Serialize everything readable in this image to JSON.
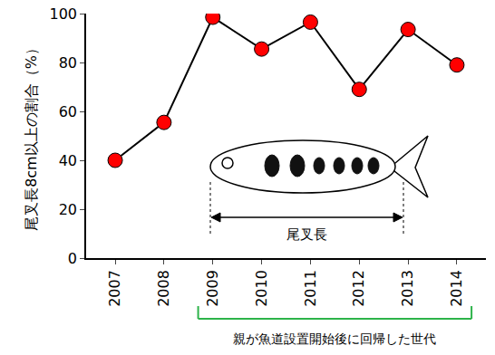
{
  "chart_data": {
    "type": "line",
    "categories": [
      "2007",
      "2008",
      "2009",
      "2010",
      "2011",
      "2012",
      "2013",
      "2014"
    ],
    "values": [
      40,
      55.5,
      98.5,
      85.5,
      96.5,
      69,
      93.5,
      79
    ],
    "color": "#ff0000",
    "marker": "circle",
    "y_label": "尾叉長8cm以上の割合（%）",
    "ylim": [
      0,
      100
    ],
    "yticks": [
      0,
      20,
      40,
      60,
      80,
      100
    ],
    "grid": false,
    "annotations": [
      {
        "text": "尾叉長"
      },
      {
        "text": "親が魚道設置開始後に回帰した世代",
        "from": "2009",
        "to": "2014",
        "color": "#2db34a"
      }
    ]
  }
}
